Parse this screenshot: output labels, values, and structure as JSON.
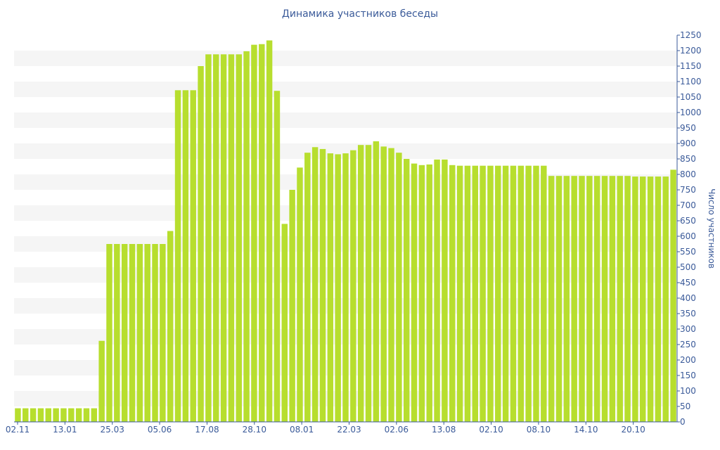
{
  "chart_data": {
    "type": "bar",
    "title": "Динамика участников беседы",
    "ylabel": "Число участников",
    "ylim": [
      0,
      1250
    ],
    "y_ticks": [
      0,
      50,
      100,
      150,
      200,
      250,
      300,
      350,
      400,
      450,
      500,
      550,
      600,
      650,
      700,
      750,
      800,
      850,
      900,
      950,
      1000,
      1050,
      1100,
      1150,
      1200,
      1250
    ],
    "x_tick_labels": [
      "02.11",
      "13.01",
      "25.03",
      "05.06",
      "17.08",
      "28.10",
      "08.01",
      "22.03",
      "02.06",
      "13.08",
      "02.10",
      "08.10",
      "14.10",
      "20.10"
    ],
    "values": [
      44,
      44,
      44,
      44,
      44,
      44,
      44,
      44,
      44,
      44,
      44,
      262,
      575,
      575,
      575,
      575,
      575,
      575,
      575,
      575,
      617,
      1072,
      1072,
      1072,
      1150,
      1188,
      1188,
      1188,
      1188,
      1188,
      1198,
      1219,
      1221,
      1233,
      1070,
      640,
      750,
      822,
      870,
      888,
      882,
      868,
      865,
      868,
      878,
      895,
      895,
      907,
      890,
      885,
      870,
      850,
      835,
      830,
      832,
      848,
      848,
      830,
      828,
      828,
      828,
      828,
      828,
      828,
      828,
      828,
      828,
      828,
      828,
      828,
      795,
      795,
      795,
      795,
      795,
      795,
      795,
      795,
      795,
      795,
      795,
      793,
      793,
      793,
      793,
      793,
      815
    ],
    "grid": true,
    "colors": {
      "bar": "#b7de2e",
      "band": "#f5f5f5",
      "text": "#3a5a99",
      "axis": "#3a5a99"
    }
  }
}
